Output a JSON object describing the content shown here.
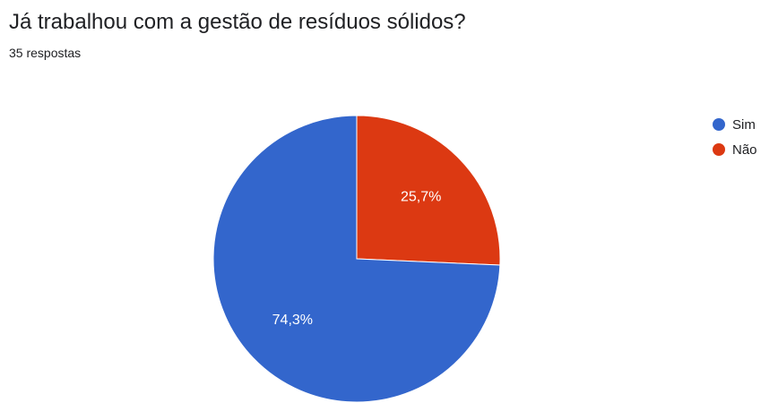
{
  "header": {
    "title": "Já trabalhou com a gestão de resíduos sólidos?",
    "subtitle": "35 respostas"
  },
  "chart_data": {
    "type": "pie",
    "categories": [
      "Sim",
      "Não"
    ],
    "values": [
      74.3,
      25.7
    ],
    "value_labels": [
      "74,3%",
      "25,7%"
    ],
    "colors": [
      "#3366cc",
      "#dc3912"
    ],
    "legend_position": "right-top",
    "start": "top",
    "direction": "clockwise",
    "first_slice": "Não"
  }
}
